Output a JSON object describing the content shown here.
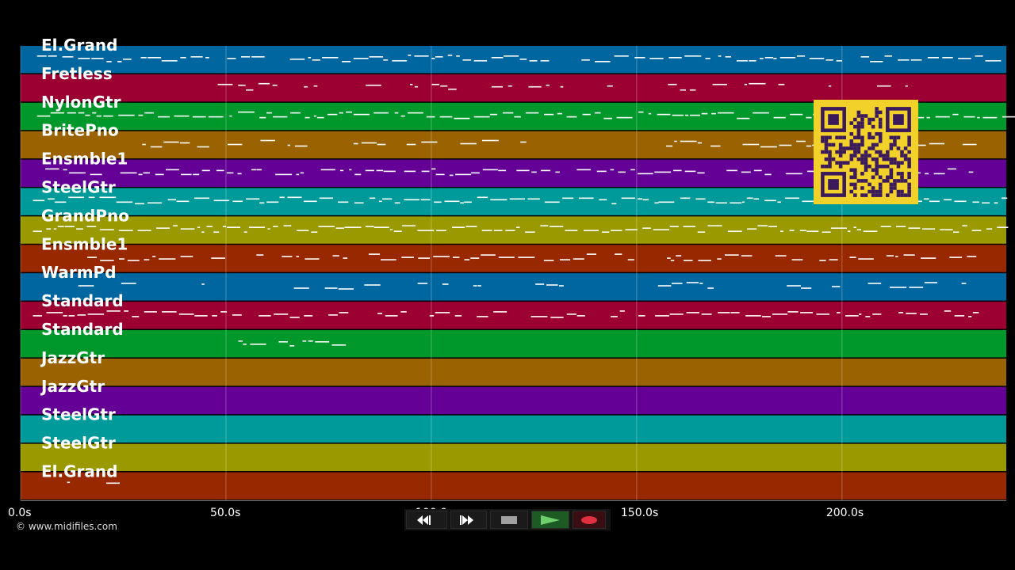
{
  "app": {
    "copyright": "© www.midifiles.com"
  },
  "timeline": {
    "ticks": [
      "0.0s",
      "50.0s",
      "100.0s",
      "150.0s",
      "200.0s"
    ],
    "tick_values": [
      0,
      50,
      100,
      150,
      200
    ],
    "max_seconds": 240
  },
  "tracks": [
    {
      "name": "El.Grand",
      "color": "#0066a0"
    },
    {
      "name": "Fretless",
      "color": "#9c0032"
    },
    {
      "name": "NylonGtr",
      "color": "#00982a"
    },
    {
      "name": "BritePno",
      "color": "#9a6200"
    },
    {
      "name": "Ensmble1",
      "color": "#640096"
    },
    {
      "name": "SteelGtr",
      "color": "#009a9a"
    },
    {
      "name": "GrandPno",
      "color": "#9a9a00"
    },
    {
      "name": "Ensmble1",
      "color": "#982800"
    },
    {
      "name": "WarmPd",
      "color": "#0066a0"
    },
    {
      "name": "Standard",
      "color": "#9c0032"
    },
    {
      "name": "Standard",
      "color": "#00982a"
    },
    {
      "name": "JazzGtr",
      "color": "#9a6200"
    },
    {
      "name": "JazzGtr",
      "color": "#640096"
    },
    {
      "name": "SteelGtr",
      "color": "#009a9a"
    },
    {
      "name": "SteelGtr",
      "color": "#9a9a00"
    },
    {
      "name": "El.Grand",
      "color": "#982800"
    }
  ],
  "transport": {
    "buttons": [
      {
        "name": "rewind-button",
        "icon": "rewind-icon"
      },
      {
        "name": "fast-forward-button",
        "icon": "fast-forward-icon"
      },
      {
        "name": "stop-button",
        "icon": "stop-icon"
      },
      {
        "name": "play-button",
        "icon": "play-icon"
      },
      {
        "name": "record-button",
        "icon": "record-icon"
      }
    ]
  },
  "overlay": {
    "qr_icon": "qr-code-icon",
    "qr_bg": "#f2d22a",
    "qr_fg": "#3a1a5a"
  }
}
